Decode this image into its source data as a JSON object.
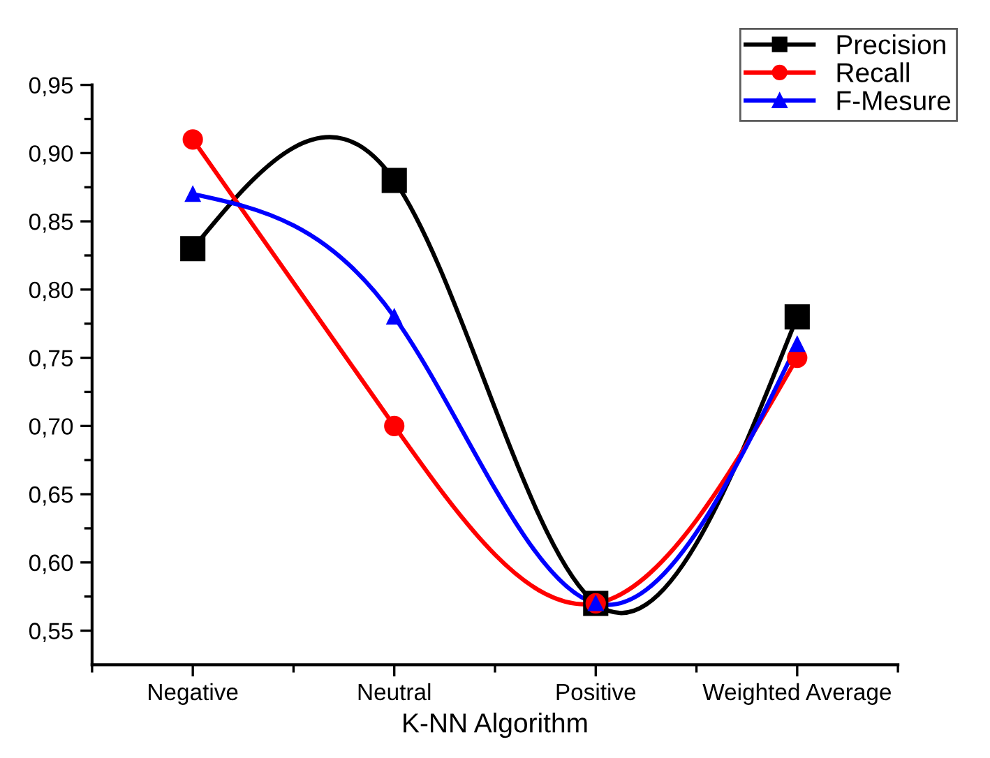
{
  "chart_data": {
    "type": "line",
    "xlabel": "K-NN Algorithm",
    "categories": [
      "Negative",
      "Neutral",
      "Positive",
      "Weighted Average"
    ],
    "series": [
      {
        "name": "Precision",
        "color": "#000000",
        "marker": "square",
        "values": [
          0.83,
          0.88,
          0.57,
          0.78
        ]
      },
      {
        "name": "Recall",
        "color": "#ff0000",
        "marker": "circle",
        "values": [
          0.91,
          0.7,
          0.57,
          0.75
        ]
      },
      {
        "name": "F-Mesure",
        "color": "#0000ff",
        "marker": "triangle",
        "values": [
          0.87,
          0.78,
          0.57,
          0.76
        ]
      }
    ],
    "ylim": [
      0.525,
      0.95
    ],
    "yticks": [
      {
        "value": 0.55,
        "label": "0,55"
      },
      {
        "value": 0.575,
        "label": null
      },
      {
        "value": 0.6,
        "label": "0,60"
      },
      {
        "value": 0.625,
        "label": null
      },
      {
        "value": 0.65,
        "label": "0,65"
      },
      {
        "value": 0.675,
        "label": null
      },
      {
        "value": 0.7,
        "label": "0,70"
      },
      {
        "value": 0.725,
        "label": null
      },
      {
        "value": 0.75,
        "label": "0,75"
      },
      {
        "value": 0.775,
        "label": null
      },
      {
        "value": 0.8,
        "label": "0,80"
      },
      {
        "value": 0.825,
        "label": null
      },
      {
        "value": 0.85,
        "label": "0,85"
      },
      {
        "value": 0.875,
        "label": null
      },
      {
        "value": 0.9,
        "label": "0,90"
      },
      {
        "value": 0.925,
        "label": null
      },
      {
        "value": 0.95,
        "label": "0,95"
      }
    ],
    "grid": false,
    "legend": "top right",
    "line_style": "solid"
  }
}
